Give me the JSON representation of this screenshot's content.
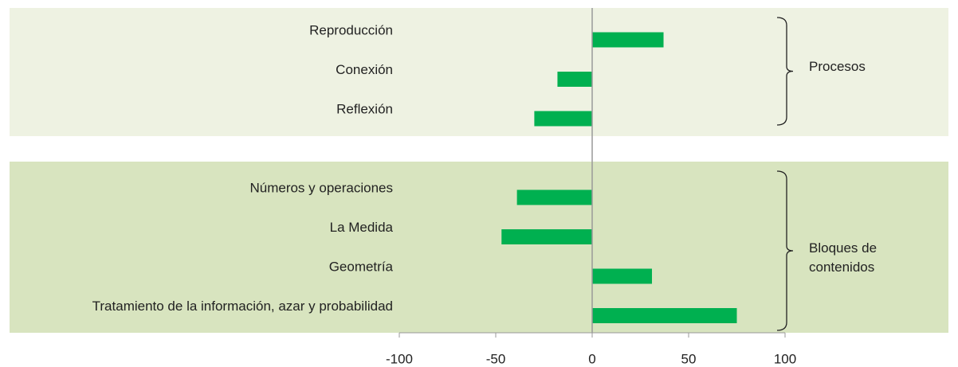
{
  "chart_data": {
    "type": "bar",
    "orientation": "horizontal",
    "color": "#00b050",
    "xlim": [
      -100,
      100
    ],
    "xticks": [
      -100,
      -50,
      0,
      50,
      100
    ],
    "groups": [
      {
        "name": "Procesos",
        "categories": [
          "Reproducción",
          "Conexión",
          "Reflexión"
        ],
        "values": [
          37,
          -18,
          -30
        ]
      },
      {
        "name": "Bloques de contenidos",
        "categories": [
          "Números y operaciones",
          "La Medida",
          "Geometría",
          "Tratamiento de la información, azar y probabilidad"
        ],
        "values": [
          -39,
          -47,
          31,
          75
        ]
      }
    ]
  }
}
